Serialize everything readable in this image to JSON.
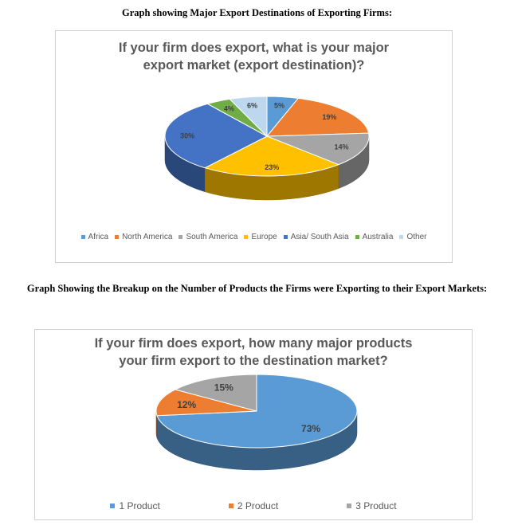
{
  "headings": {
    "first": "Graph showing Major Export Destinations of Exporting Firms:",
    "second": "Graph Showing the Breakup on the Number of Products the Firms were Exporting to their Export Markets:"
  },
  "chart_data": [
    {
      "type": "pie",
      "title_lines": [
        "If your firm does export, what is your major",
        "export market (export destination)?"
      ],
      "categories": [
        "Africa",
        "North America",
        "South America",
        "Europe",
        "Asia/ South Asia",
        "Australia",
        "Other"
      ],
      "values": [
        5,
        19,
        14,
        23,
        30,
        4,
        6
      ],
      "labels": [
        "5%",
        "19%",
        "14%",
        "23%",
        "30%",
        "4%",
        "6%"
      ],
      "colors": [
        "#5b9bd5",
        "#ed7d31",
        "#a5a5a5",
        "#ffc000",
        "#4472c4",
        "#70ad47",
        "#bdd7ee"
      ],
      "style": "3d",
      "legend_position": "bottom"
    },
    {
      "type": "pie",
      "title_lines": [
        "If your firm does export, how many major products",
        "your firm export to the destination market?"
      ],
      "categories": [
        "1 Product",
        "2 Product",
        "3 Product"
      ],
      "values": [
        73,
        12,
        15
      ],
      "labels": [
        "73%",
        "12%",
        "15%"
      ],
      "colors": [
        "#5b9bd5",
        "#ed7d31",
        "#a5a5a5"
      ],
      "style": "3d",
      "legend_position": "bottom"
    }
  ]
}
